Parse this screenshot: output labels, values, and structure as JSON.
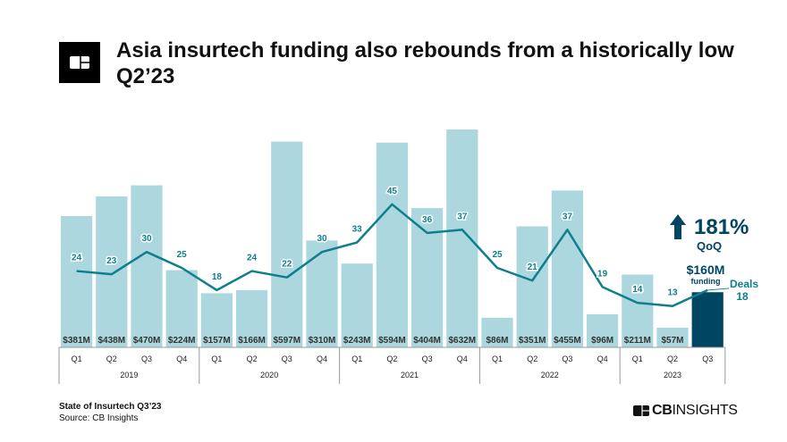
{
  "title": "Asia insurtech funding also rebounds from a historically low Q2’23",
  "footer": {
    "report": "State of Insurtech Q3’23",
    "source": "Source: CB Insights",
    "brand_bold": "CB",
    "brand_light": "INSIGHTS"
  },
  "colors": {
    "bar": "#acd7df",
    "bar_highlight": "#004561",
    "line": "#0e7f8c",
    "amount_label": "#333333",
    "title": "#111111"
  },
  "chart_data": {
    "type": "bar+line",
    "categories": [
      "Q1",
      "Q2",
      "Q3",
      "Q4",
      "Q1",
      "Q2",
      "Q3",
      "Q4",
      "Q1",
      "Q2",
      "Q3",
      "Q4",
      "Q1",
      "Q2",
      "Q3",
      "Q4",
      "Q1",
      "Q2",
      "Q3"
    ],
    "years": [
      {
        "label": "2019",
        "count": 4
      },
      {
        "label": "2020",
        "count": 4
      },
      {
        "label": "2021",
        "count": 4
      },
      {
        "label": "2022",
        "count": 4
      },
      {
        "label": "2023",
        "count": 3
      }
    ],
    "series": [
      {
        "type": "bar",
        "unit": "$M",
        "values": [
          381,
          438,
          470,
          224,
          157,
          166,
          597,
          310,
          243,
          594,
          404,
          632,
          86,
          351,
          455,
          96,
          211,
          57,
          160
        ],
        "labels": [
          "$381M",
          "$438M",
          "$470M",
          "$224M",
          "$157M",
          "$166M",
          "$597M",
          "$310M",
          "$243M",
          "$594M",
          "$404M",
          "$632M",
          "$86M",
          "$351M",
          "$455M",
          "$96M",
          "$211M",
          "$57M",
          ""
        ]
      },
      {
        "type": "line",
        "values": [
          24,
          23,
          30,
          25,
          18,
          24,
          22,
          30,
          33,
          45,
          36,
          37,
          25,
          21,
          37,
          19,
          14,
          13,
          18
        ]
      }
    ],
    "annotations": {
      "change": "181%",
      "change_label": "QoQ",
      "funding_value": "$160M",
      "funding_label": "funding",
      "deals_label": "Deals",
      "deals_value": "18"
    }
  }
}
